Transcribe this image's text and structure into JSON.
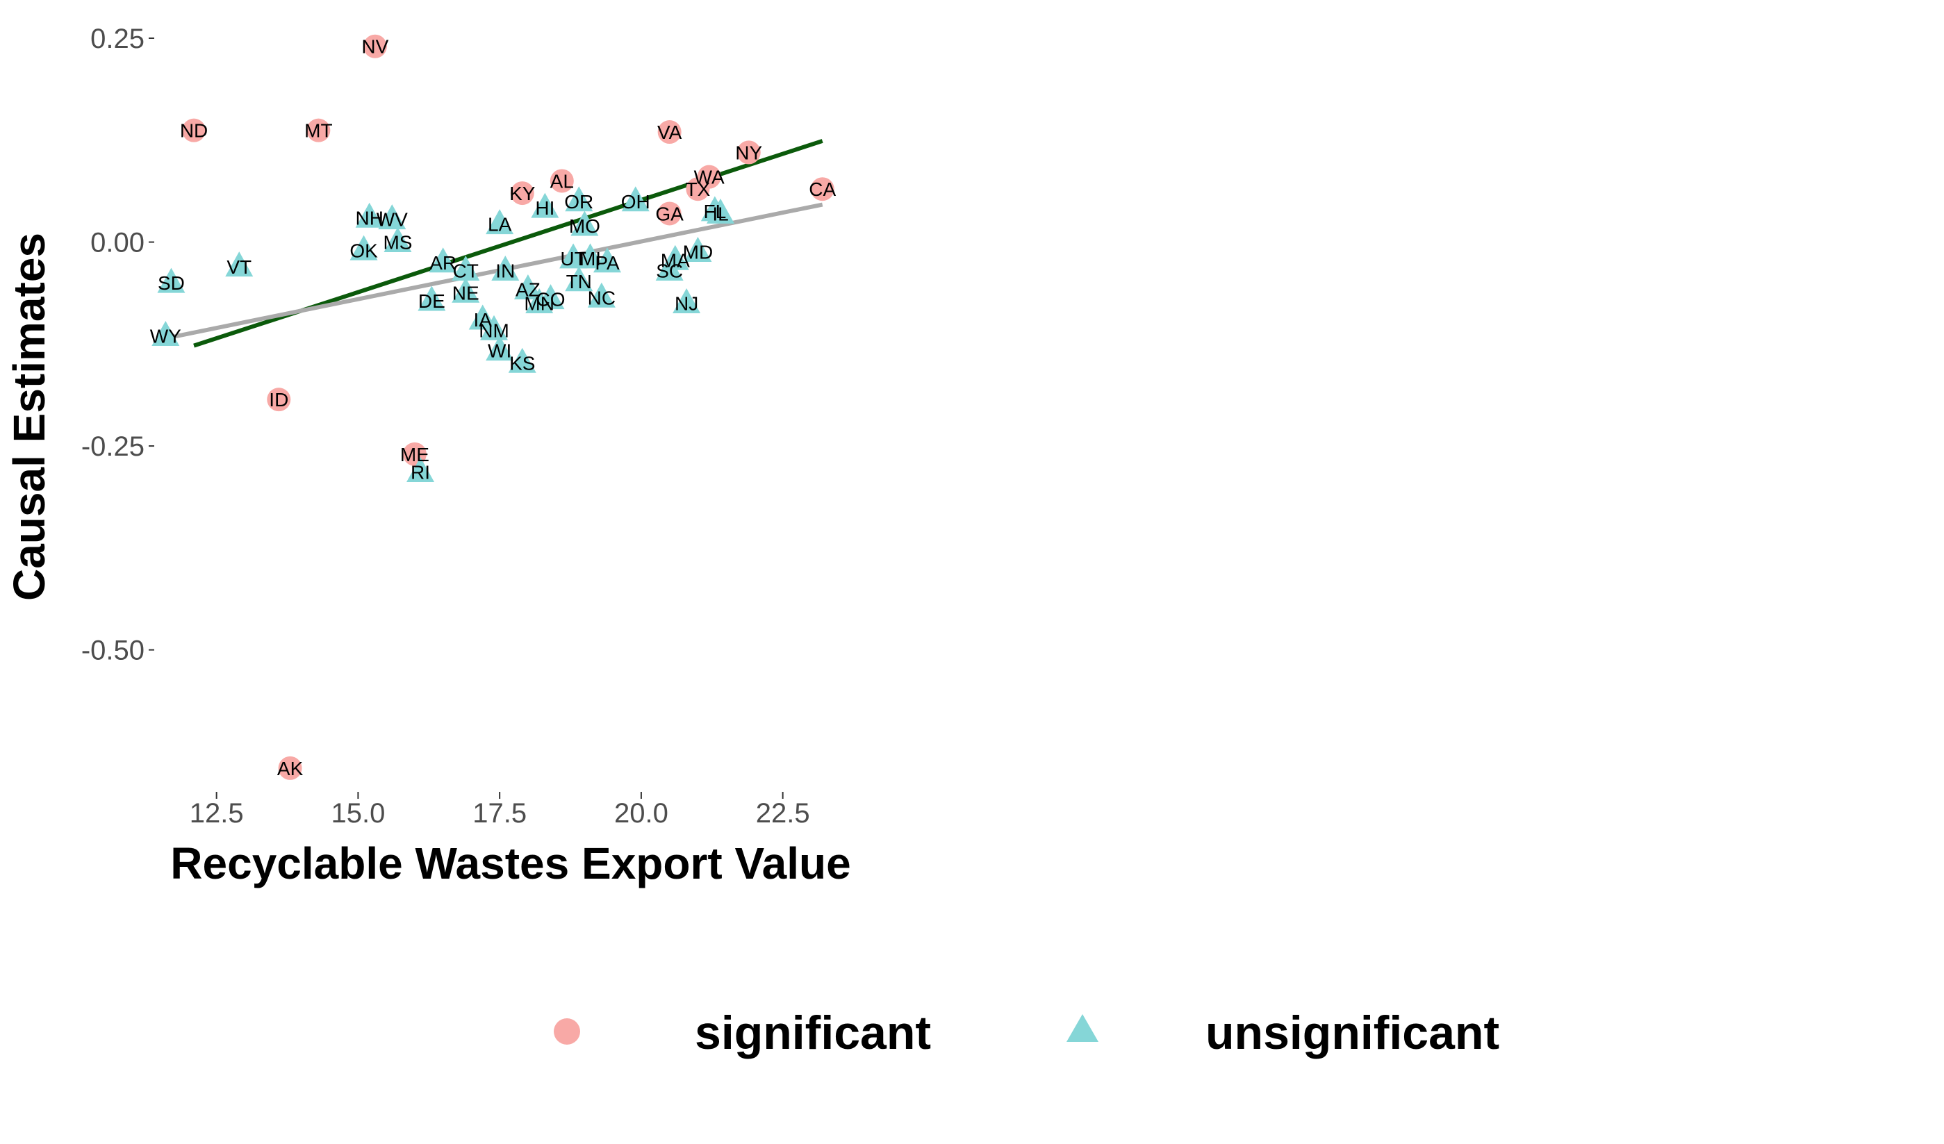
{
  "chart_data": {
    "type": "scatter",
    "xlabel": "Recyclable Wastes Export Value",
    "ylabel": "Causal Estimates",
    "xlim": [
      11.4,
      23.4
    ],
    "ylim": [
      -0.64,
      0.25
    ],
    "x_ticks": [
      12.5,
      15.0,
      17.5,
      20.0,
      22.5
    ],
    "x_tick_labels": [
      "12.5",
      "15.0",
      "17.5",
      "20.0",
      "22.5"
    ],
    "y_ticks": [
      0.25,
      0.0,
      -0.25,
      -0.5
    ],
    "y_tick_labels": [
      "0.25",
      "0.00",
      "-0.25",
      "-0.50"
    ],
    "grid": false,
    "legend_position": "bottom",
    "legend": [
      {
        "key": "significant",
        "label": "significant",
        "shape": "circle",
        "color": "#F8A9A6"
      },
      {
        "key": "unsignificant",
        "label": "unsignificant",
        "shape": "triangle",
        "color": "#85D6D7"
      }
    ],
    "series": [
      {
        "key": "significant",
        "shape": "circle",
        "color": "#F8A9A6",
        "points": [
          {
            "label": "NV",
            "x": 15.3,
            "y": 0.24
          },
          {
            "label": "ND",
            "x": 12.1,
            "y": 0.137
          },
          {
            "label": "MT",
            "x": 14.3,
            "y": 0.137
          },
          {
            "label": "VA",
            "x": 20.5,
            "y": 0.135
          },
          {
            "label": "NY",
            "x": 21.9,
            "y": 0.11
          },
          {
            "label": "CA",
            "x": 23.2,
            "y": 0.065
          },
          {
            "label": "WA",
            "x": 21.2,
            "y": 0.08
          },
          {
            "label": "TX",
            "x": 21.0,
            "y": 0.065
          },
          {
            "label": "AL",
            "x": 18.6,
            "y": 0.075
          },
          {
            "label": "KY",
            "x": 17.9,
            "y": 0.06
          },
          {
            "label": "GA",
            "x": 20.5,
            "y": 0.035
          },
          {
            "label": "ID",
            "x": 13.6,
            "y": -0.193
          },
          {
            "label": "ME",
            "x": 16.0,
            "y": -0.26
          },
          {
            "label": "AK",
            "x": 13.8,
            "y": -0.645
          }
        ]
      },
      {
        "key": "unsignificant",
        "shape": "triangle",
        "color": "#85D6D7",
        "points": [
          {
            "label": "NH",
            "x": 15.2,
            "y": 0.03
          },
          {
            "label": "WV",
            "x": 15.6,
            "y": 0.028
          },
          {
            "label": "OK",
            "x": 15.1,
            "y": -0.01
          },
          {
            "label": "MS",
            "x": 15.7,
            "y": 0.0
          },
          {
            "label": "VT",
            "x": 12.9,
            "y": -0.03
          },
          {
            "label": "SD",
            "x": 11.7,
            "y": -0.05
          },
          {
            "label": "WY",
            "x": 11.6,
            "y": -0.115
          },
          {
            "label": "AR",
            "x": 16.5,
            "y": -0.025
          },
          {
            "label": "CT",
            "x": 16.9,
            "y": -0.035
          },
          {
            "label": "NE",
            "x": 16.9,
            "y": -0.062
          },
          {
            "label": "DE",
            "x": 16.3,
            "y": -0.072
          },
          {
            "label": "IA",
            "x": 17.2,
            "y": -0.095
          },
          {
            "label": "NM",
            "x": 17.4,
            "y": -0.108
          },
          {
            "label": "WI",
            "x": 17.5,
            "y": -0.133
          },
          {
            "label": "KS",
            "x": 17.9,
            "y": -0.148
          },
          {
            "label": "IN",
            "x": 17.6,
            "y": -0.035
          },
          {
            "label": "LA",
            "x": 17.5,
            "y": 0.022
          },
          {
            "label": "HI",
            "x": 18.3,
            "y": 0.042
          },
          {
            "label": "OR",
            "x": 18.9,
            "y": 0.05
          },
          {
            "label": "MO",
            "x": 19.0,
            "y": 0.02
          },
          {
            "label": "OH",
            "x": 19.9,
            "y": 0.05
          },
          {
            "label": "FL",
            "x": 21.3,
            "y": 0.038
          },
          {
            "label": "IL",
            "x": 21.4,
            "y": 0.035
          },
          {
            "label": "UT",
            "x": 18.8,
            "y": -0.02
          },
          {
            "label": "MI",
            "x": 19.1,
            "y": -0.02
          },
          {
            "label": "PA",
            "x": 19.4,
            "y": -0.025
          },
          {
            "label": "AZ",
            "x": 18.0,
            "y": -0.058
          },
          {
            "label": "TN",
            "x": 18.9,
            "y": -0.048
          },
          {
            "label": "MN",
            "x": 18.2,
            "y": -0.075
          },
          {
            "label": "CO",
            "x": 18.4,
            "y": -0.07
          },
          {
            "label": "NC",
            "x": 19.3,
            "y": -0.068
          },
          {
            "label": "MA",
            "x": 20.6,
            "y": -0.022
          },
          {
            "label": "MD",
            "x": 21.0,
            "y": -0.012
          },
          {
            "label": "SC",
            "x": 20.5,
            "y": -0.035
          },
          {
            "label": "NJ",
            "x": 20.8,
            "y": -0.075
          },
          {
            "label": "RI",
            "x": 16.1,
            "y": -0.282
          }
        ]
      }
    ],
    "fit_lines": [
      {
        "color": "#0B5A0B",
        "x": [
          12.1,
          23.2
        ],
        "y": [
          -0.127,
          0.124
        ]
      },
      {
        "color": "#AAAAAA",
        "x": [
          11.6,
          23.2
        ],
        "y": [
          -0.118,
          0.046
        ]
      }
    ]
  }
}
